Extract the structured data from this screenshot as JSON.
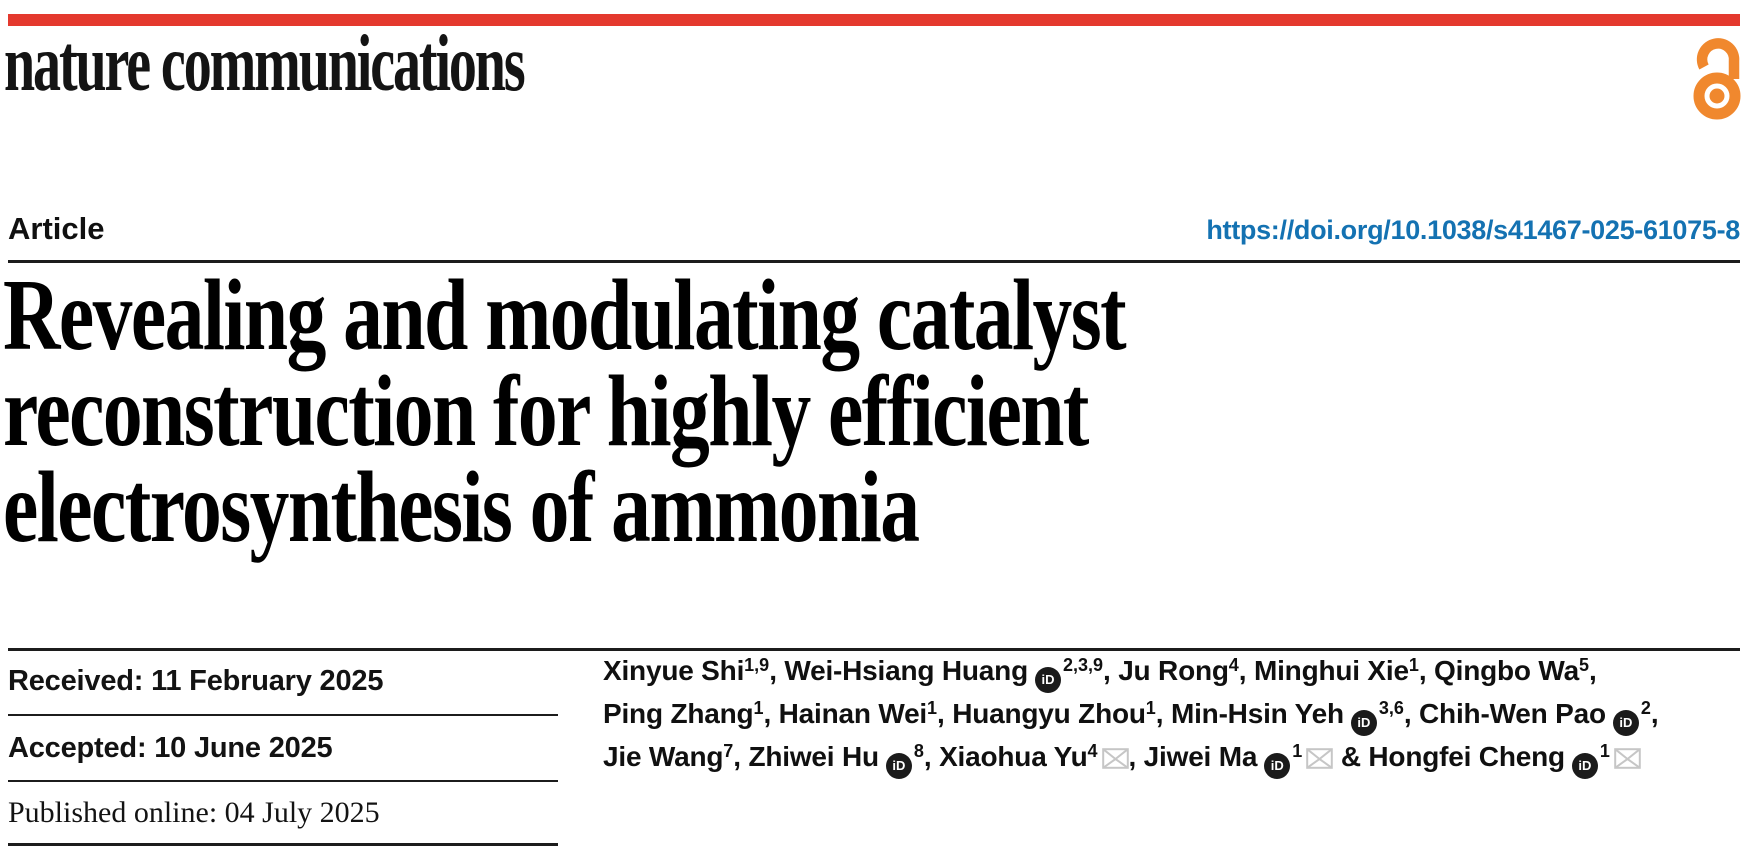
{
  "masthead": {
    "brand": "nature communications"
  },
  "open_access": {
    "icon": "open-access-lock-icon",
    "color": "#f0882e"
  },
  "header": {
    "article_label": "Article",
    "doi_url": "https://doi.org/10.1038/s41467-025-61075-8"
  },
  "title": {
    "lines": [
      "Revealing and modulating catalyst",
      "reconstruction for highly efficient",
      "electrosynthesis of ammonia"
    ]
  },
  "dates": {
    "received": "Received: 11 February 2025",
    "accepted": "Accepted: 10 June 2025",
    "published": "Published online: 04 July 2025"
  },
  "authors": {
    "lines": [
      [
        {
          "t": "text",
          "v": "Xinyue Shi"
        },
        {
          "t": "sup",
          "v": "1,9"
        },
        {
          "t": "text",
          "v": ", Wei-Hsiang Huang"
        },
        {
          "t": "orcid"
        },
        {
          "t": "sup",
          "v": "2,3,9"
        },
        {
          "t": "text",
          "v": ", Ju Rong"
        },
        {
          "t": "sup",
          "v": "4"
        },
        {
          "t": "text",
          "v": ", Minghui Xie"
        },
        {
          "t": "sup",
          "v": "1"
        },
        {
          "t": "text",
          "v": ", Qingbo Wa"
        },
        {
          "t": "sup",
          "v": "5"
        },
        {
          "t": "text",
          "v": ","
        }
      ],
      [
        {
          "t": "text",
          "v": "Ping Zhang"
        },
        {
          "t": "sup",
          "v": "1"
        },
        {
          "t": "text",
          "v": ", Hainan Wei"
        },
        {
          "t": "sup",
          "v": "1"
        },
        {
          "t": "text",
          "v": ", Huangyu Zhou"
        },
        {
          "t": "sup",
          "v": "1"
        },
        {
          "t": "text",
          "v": ", Min-Hsin Yeh"
        },
        {
          "t": "orcid"
        },
        {
          "t": "sup",
          "v": "3,6"
        },
        {
          "t": "text",
          "v": ", Chih-Wen Pao"
        },
        {
          "t": "orcid"
        },
        {
          "t": "sup",
          "v": "2"
        },
        {
          "t": "text",
          "v": ","
        }
      ],
      [
        {
          "t": "text",
          "v": "Jie Wang"
        },
        {
          "t": "sup",
          "v": "7"
        },
        {
          "t": "text",
          "v": ", Zhiwei Hu"
        },
        {
          "t": "orcid"
        },
        {
          "t": "sup",
          "v": "8"
        },
        {
          "t": "text",
          "v": ", Xiaohua Yu"
        },
        {
          "t": "sup",
          "v": "4"
        },
        {
          "t": "mail"
        },
        {
          "t": "text",
          "v": ", Jiwei Ma"
        },
        {
          "t": "orcid"
        },
        {
          "t": "sup",
          "v": "1"
        },
        {
          "t": "mail"
        },
        {
          "t": "text",
          "v": " & Hongfei Cheng"
        },
        {
          "t": "orcid"
        },
        {
          "t": "sup",
          "v": "1"
        },
        {
          "t": "mail"
        }
      ]
    ]
  },
  "icons": {
    "orcid": "orcid-id-icon",
    "mail": "email-envelope-icon",
    "orcid_glyph": "iD"
  },
  "colors": {
    "top_bar": "#e4392e",
    "doi_link": "#1472b2",
    "open_access": "#f0882e",
    "text": "#111111",
    "envelope_gray": "#c6c6c6"
  }
}
